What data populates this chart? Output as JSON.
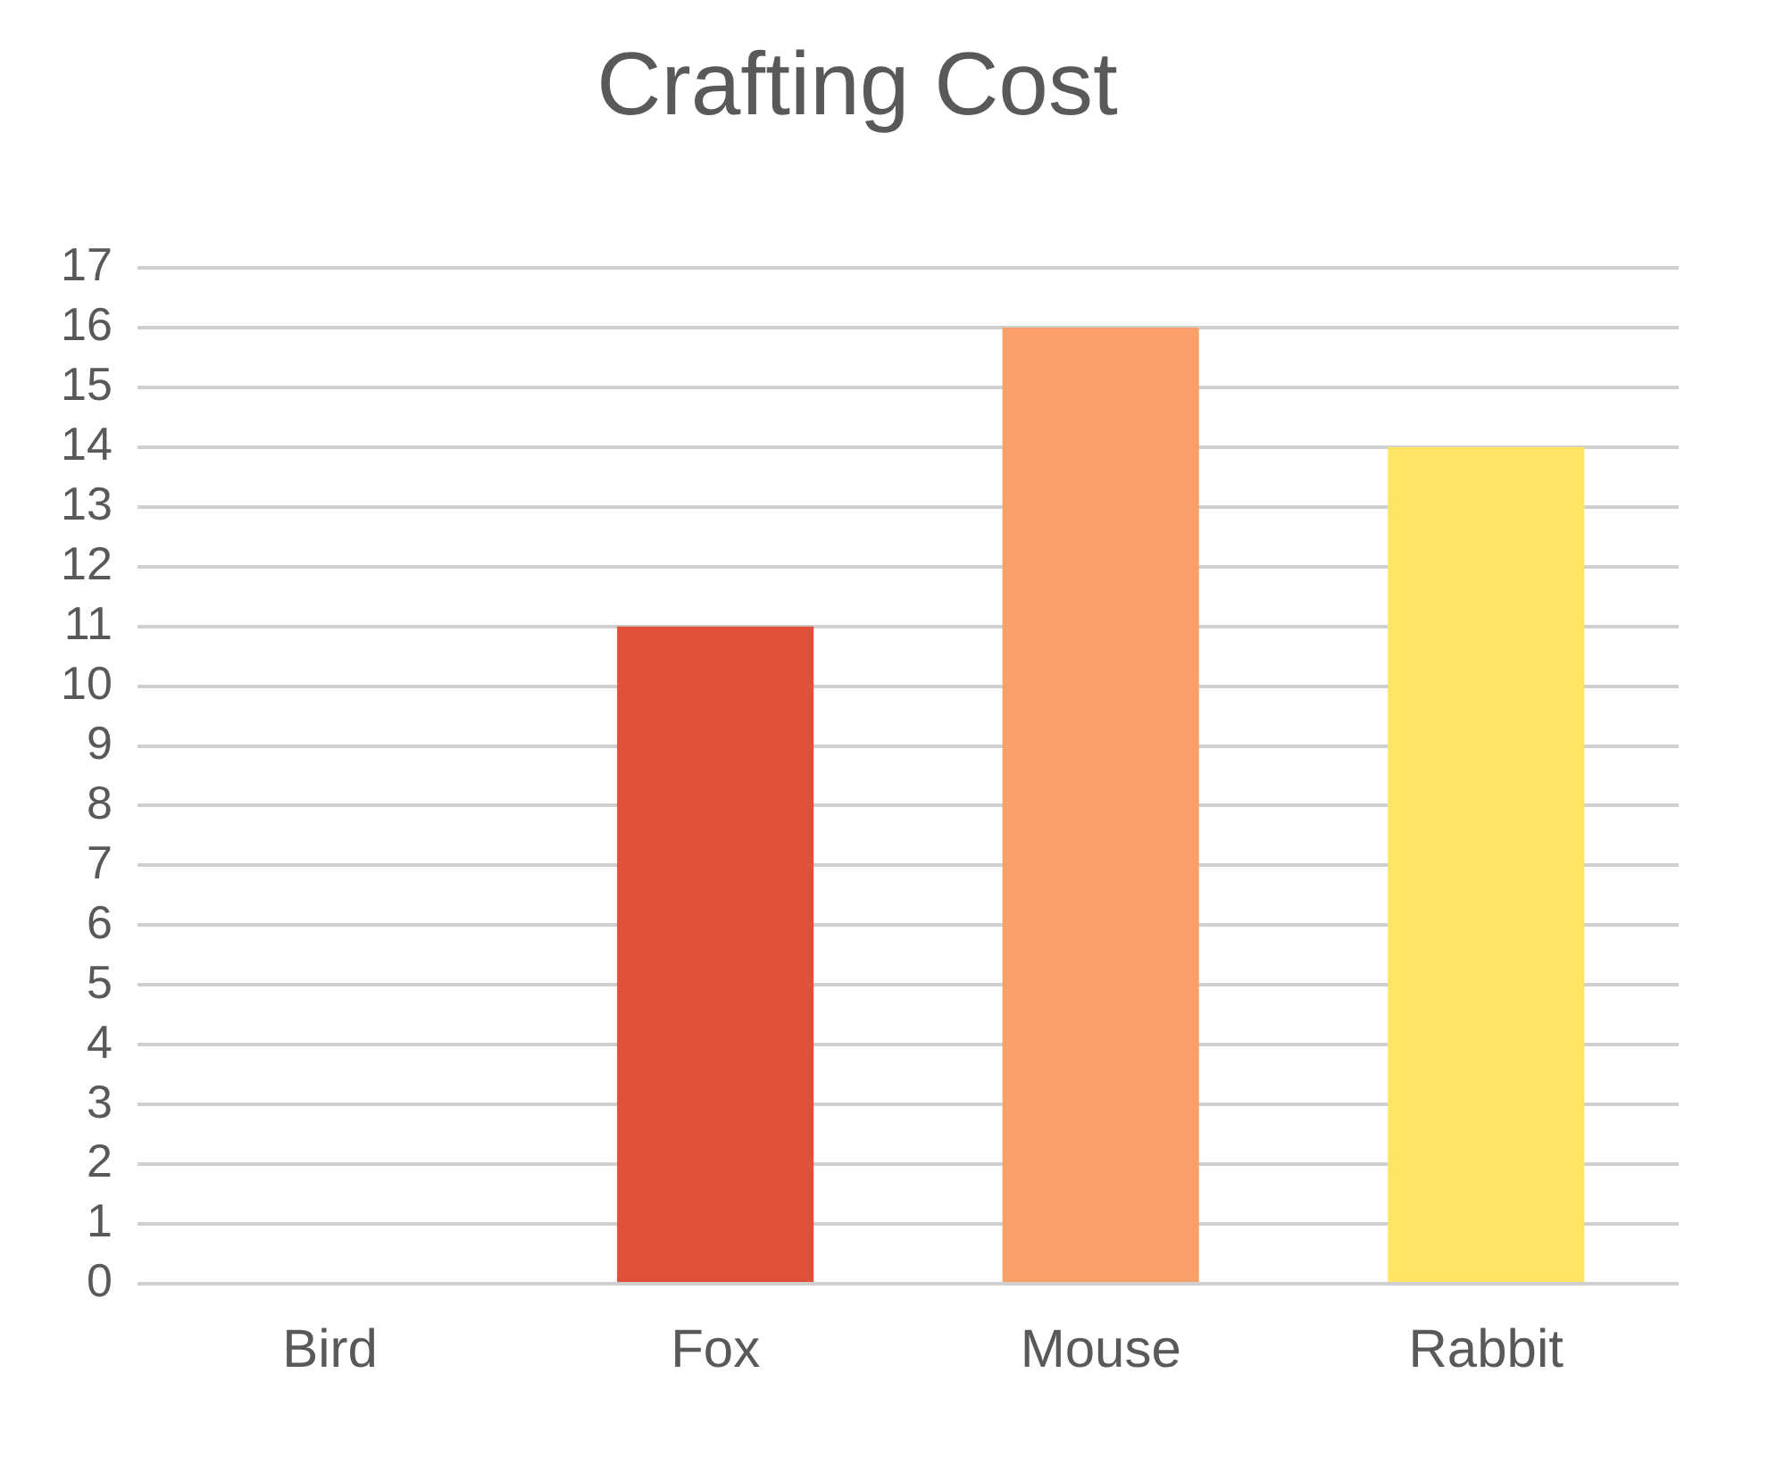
{
  "chart_data": {
    "type": "bar",
    "title": "Crafting Cost",
    "categories": [
      "Bird",
      "Fox",
      "Mouse",
      "Rabbit"
    ],
    "values": [
      0,
      11,
      16,
      14
    ],
    "colors": [
      "#e0503a",
      "#e0503a",
      "#f9a06a",
      "#ffe566"
    ],
    "ylim": [
      0,
      17
    ],
    "yticks": [
      0,
      1,
      2,
      3,
      4,
      5,
      6,
      7,
      8,
      9,
      10,
      11,
      12,
      13,
      14,
      15,
      16,
      17
    ],
    "grid": "y"
  }
}
